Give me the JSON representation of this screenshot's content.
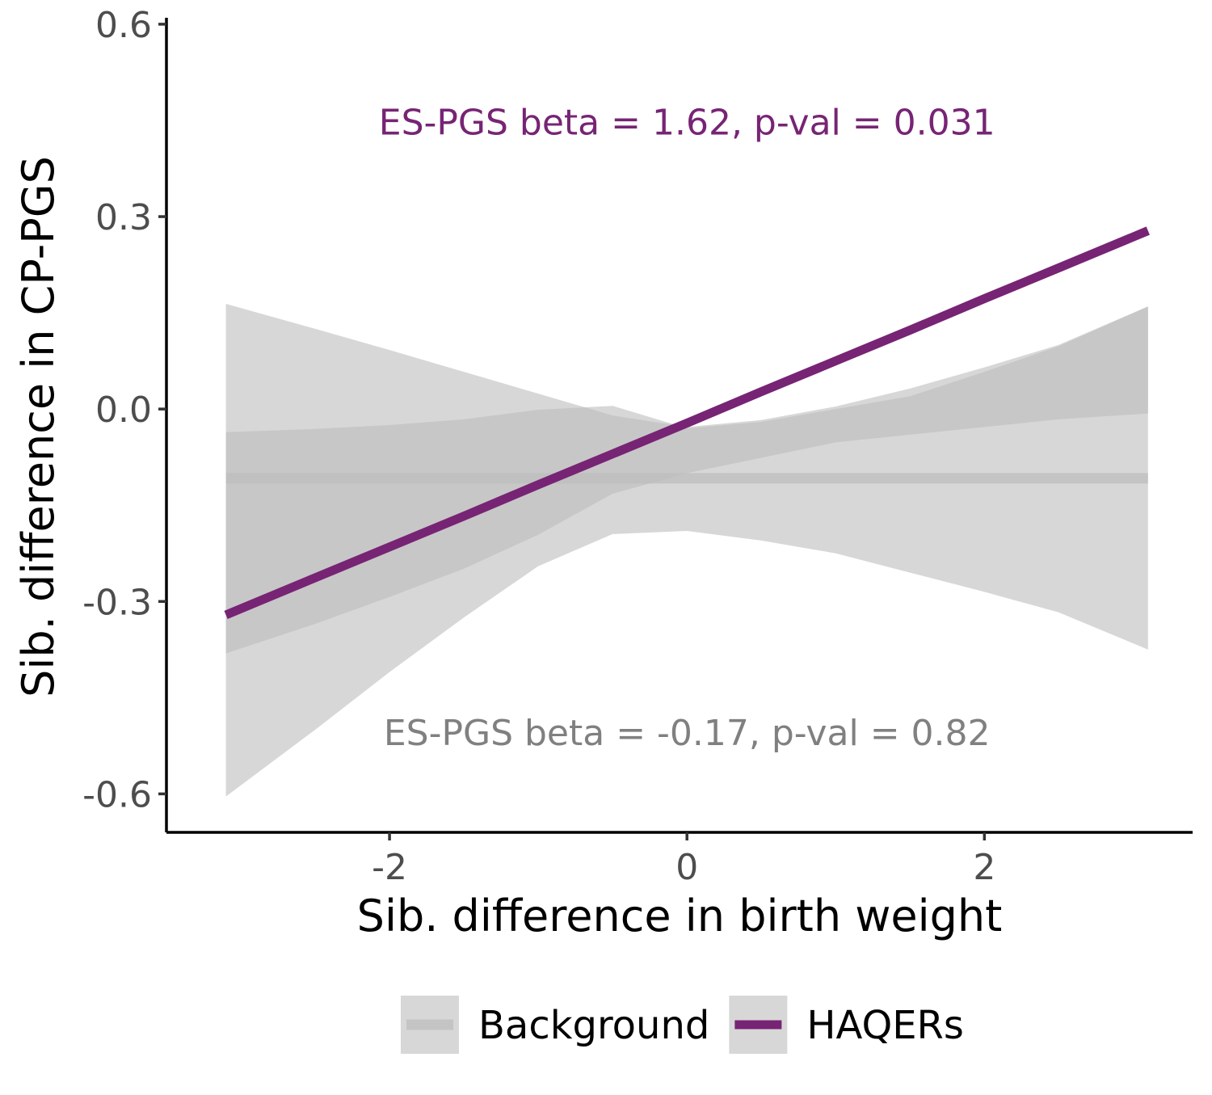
{
  "chart_data": {
    "type": "line",
    "xlabel": "Sib. difference in birth weight",
    "ylabel": "Sib. difference in CP-PGS",
    "xlim": [
      -3.5,
      3.4
    ],
    "ylim": [
      -0.66,
      0.61
    ],
    "x_ticks": [
      -2,
      0,
      2
    ],
    "x_tick_labels": [
      "-2",
      "0",
      "2"
    ],
    "y_ticks": [
      -0.6,
      -0.3,
      0.0,
      0.3,
      0.6
    ],
    "y_tick_labels": [
      "-0.6",
      "-0.3",
      "0.0",
      "0.3",
      "0.6"
    ],
    "grid": false,
    "legend_position": "bottom",
    "series": [
      {
        "name": "Background",
        "color": "#bdbdbd",
        "ribbon_color": "#bdbdbd",
        "x": [
          -3.1,
          -2.5,
          -2.0,
          -1.5,
          -1.0,
          -0.5,
          0.0,
          0.5,
          1.0,
          1.5,
          2.0,
          2.5,
          3.1
        ],
        "y": [
          -0.108,
          -0.108,
          -0.108,
          -0.108,
          -0.108,
          -0.108,
          -0.108,
          -0.108,
          -0.108,
          -0.108,
          -0.108,
          -0.108,
          -0.108
        ],
        "lower": [
          -0.381,
          -0.335,
          -0.293,
          -0.249,
          -0.196,
          -0.132,
          -0.1,
          -0.076,
          -0.052,
          -0.04,
          -0.028,
          -0.016,
          -0.007
        ],
        "upper": [
          -0.036,
          -0.031,
          -0.025,
          -0.016,
          -0.001,
          0.005,
          -0.03,
          -0.02,
          0.0,
          0.02,
          0.058,
          0.098,
          0.16
        ]
      },
      {
        "name": "HAQERs",
        "color": "#772475",
        "ribbon_color": "#bdbdbd",
        "x": [
          -3.1,
          -2.5,
          -2.0,
          -1.5,
          -1.0,
          -0.5,
          0.0,
          0.5,
          1.0,
          1.5,
          2.0,
          2.5,
          3.1
        ],
        "y": [
          -0.321,
          -0.263,
          -0.215,
          -0.167,
          -0.118,
          -0.07,
          -0.022,
          0.027,
          0.075,
          0.123,
          0.172,
          0.22,
          0.278
        ],
        "lower": [
          -0.604,
          -0.5,
          -0.41,
          -0.325,
          -0.245,
          -0.195,
          -0.19,
          -0.205,
          -0.225,
          -0.255,
          -0.285,
          -0.317,
          -0.375
        ],
        "upper": [
          0.164,
          0.125,
          0.092,
          0.058,
          0.024,
          -0.01,
          -0.028,
          -0.017,
          0.004,
          0.032,
          0.065,
          0.1,
          0.16
        ]
      }
    ],
    "annotations": [
      {
        "text": "ES-PGS beta = 1.62, p-val = 0.031",
        "x": 0.0,
        "y": 0.447,
        "color": "#772475"
      },
      {
        "text": "ES-PGS beta = -0.17, p-val = 0.82",
        "x": 0.0,
        "y": -0.505,
        "color": "#808080"
      }
    ]
  }
}
